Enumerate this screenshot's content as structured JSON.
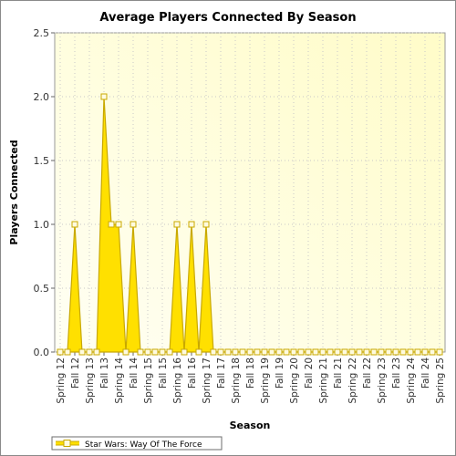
{
  "chart_data": {
    "type": "area",
    "title": "Average Players Connected By Season",
    "xlabel": "Season",
    "ylabel": "Players Connected",
    "ylim": [
      0,
      2.5
    ],
    "yticks": [
      "0.0",
      "0.5",
      "1.0",
      "1.5",
      "2.0",
      "2.5"
    ],
    "grid": true,
    "legend": "bottom-left",
    "categories": [
      "Spring 12",
      "Fall 12",
      "Spring 13",
      "Fall 13",
      "Spring 14",
      "Fall 14",
      "Spring 15",
      "Fall 15",
      "Spring 16",
      "Fall 16",
      "Spring 17",
      "Fall 17",
      "Spring 18",
      "Fall 18",
      "Spring 19",
      "Fall 19",
      "Spring 20",
      "Fall 20",
      "Spring 21",
      "Fall 21",
      "Spring 22",
      "Fall 22",
      "Spring 23",
      "Fall 23",
      "Spring 24",
      "Fall 24",
      "Spring 25"
    ],
    "x": [
      0,
      0.5,
      1,
      1.5,
      2,
      2.5,
      3,
      3.5,
      4,
      4.5,
      5,
      5.5,
      6,
      6.5,
      7,
      7.5,
      8,
      8.5,
      9,
      9.5,
      10,
      10.5,
      11,
      11.5,
      12,
      12.5,
      13,
      13.5,
      14,
      14.5,
      15,
      15.5,
      16,
      16.5,
      17,
      17.5,
      18,
      18.5,
      19,
      19.5,
      20,
      20.5,
      21,
      21.5,
      22,
      22.5,
      23,
      23.5,
      24,
      24.5,
      25,
      25.5,
      26
    ],
    "series": [
      {
        "name": "Star Wars: Way Of The Force",
        "color": "#ffe000",
        "values": [
          0,
          0,
          1,
          0,
          0,
          0,
          2,
          1,
          1,
          0,
          1,
          0,
          0,
          0,
          0,
          0,
          1,
          0,
          1,
          0,
          1,
          0,
          0,
          0,
          0,
          0,
          0,
          0,
          0,
          0,
          0,
          0,
          0,
          0,
          0,
          0,
          0,
          0,
          0,
          0,
          0,
          0,
          0,
          0,
          0,
          0,
          0,
          0,
          0,
          0,
          0,
          0,
          0
        ]
      }
    ]
  }
}
